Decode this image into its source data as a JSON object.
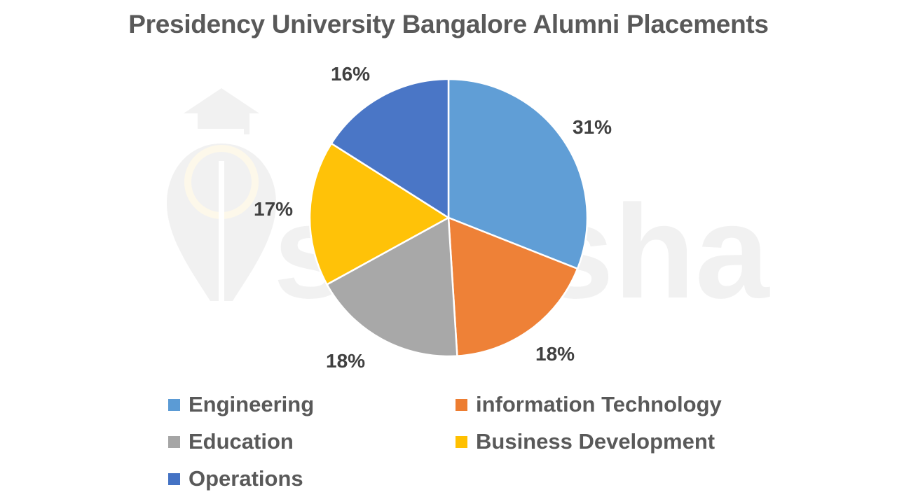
{
  "title": "Presidency University Bangalore Alumni Placements",
  "watermark": {
    "text": "shiksha",
    "icon": "graduation-cap-logo-icon"
  },
  "chart_data": {
    "type": "pie",
    "title": "Presidency University Bangalore Alumni Placements",
    "start_angle": "12 o'clock, clockwise",
    "categories": [
      "Engineering",
      "information Technology",
      "Education",
      "Business Development",
      "Operations"
    ],
    "values": [
      31,
      18,
      18,
      17,
      16
    ],
    "unit": "%",
    "colors": [
      "#5B9BD5",
      "#ED7D31",
      "#A5A5A5",
      "#FFC000",
      "#4472C4"
    ],
    "data_labels": [
      "31%",
      "18%",
      "18%",
      "17%",
      "16%"
    ],
    "legend_position": "bottom"
  },
  "legend": [
    {
      "label": "Engineering",
      "color": "#5B9BD5"
    },
    {
      "label": "information Technology",
      "color": "#ED7D31"
    },
    {
      "label": "Education",
      "color": "#A5A5A5"
    },
    {
      "label": "Business Development",
      "color": "#FFC000"
    },
    {
      "label": "Operations",
      "color": "#4472C4"
    }
  ]
}
